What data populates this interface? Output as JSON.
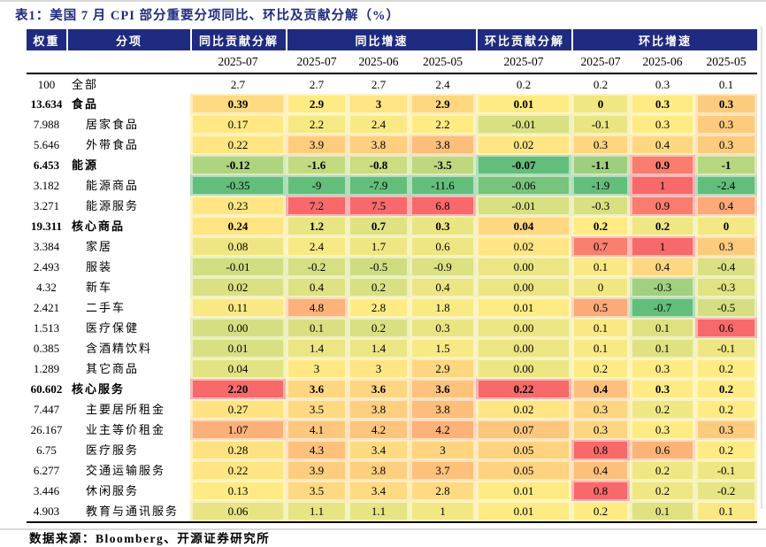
{
  "title": "表1：美国 7 月 CPI 部分重要分项同比、环比及贡献分解（%）",
  "source_note": "数据来源：Bloomberg、开源证券研究所",
  "colors": {
    "header_bg": "#1f2b80",
    "title_text": "#1f2b80",
    "scale_min_green": "#63BE7B",
    "scale_mid_yellow": "#FFEB84",
    "scale_max_red": "#F8696B"
  },
  "chart_data": {
    "type": "table",
    "title": "美国 7 月 CPI 部分重要分项同比、环比及贡献分解（%）",
    "group_headers": [
      "权重",
      "分项",
      "同比贡献分解",
      "同比增速",
      "环比贡献分解",
      "环比增速"
    ],
    "date_headers": [
      "2025-07",
      "2025-07",
      "2025-06",
      "2025-05",
      "2025-07",
      "2025-07",
      "2025-06",
      "2025-05"
    ],
    "color_scale": {
      "min": "#63BE7B",
      "mid": "#FFEB84",
      "max": "#F8696B",
      "rule": "per-column green-yellow-red scale, midpoint = column median, applied to all rows except 全部"
    },
    "rows": [
      {
        "weight": "100",
        "name": "全部",
        "level": 0,
        "bold": false,
        "colored": false,
        "values": [
          "2.7",
          "2.7",
          "2.7",
          "2.4",
          "0.2",
          "0.2",
          "0.3",
          "0.1"
        ]
      },
      {
        "weight": "13.634",
        "name": "食品",
        "level": 0,
        "bold": true,
        "colored": true,
        "values": [
          "0.39",
          "2.9",
          "3",
          "2.9",
          "0.01",
          "0",
          "0.3",
          "0.3"
        ]
      },
      {
        "weight": "7.988",
        "name": "居家食品",
        "level": 1,
        "bold": false,
        "colored": true,
        "values": [
          "0.17",
          "2.2",
          "2.4",
          "2.2",
          "-0.01",
          "-0.1",
          "0.3",
          "0.3"
        ]
      },
      {
        "weight": "5.646",
        "name": "外带食品",
        "level": 1,
        "bold": false,
        "colored": true,
        "values": [
          "0.22",
          "3.9",
          "3.8",
          "3.8",
          "0.02",
          "0.3",
          "0.4",
          "0.3"
        ]
      },
      {
        "weight": "6.453",
        "name": "能源",
        "level": 0,
        "bold": true,
        "colored": true,
        "values": [
          "-0.12",
          "-1.6",
          "-0.8",
          "-3.5",
          "-0.07",
          "-1.1",
          "0.9",
          "-1"
        ]
      },
      {
        "weight": "3.182",
        "name": "能源商品",
        "level": 1,
        "bold": false,
        "colored": true,
        "values": [
          "-0.35",
          "-9",
          "-7.9",
          "-11.6",
          "-0.06",
          "-1.9",
          "1",
          "-2.4"
        ]
      },
      {
        "weight": "3.271",
        "name": "能源服务",
        "level": 1,
        "bold": false,
        "colored": true,
        "values": [
          "0.23",
          "7.2",
          "7.5",
          "6.8",
          "-0.01",
          "-0.3",
          "0.9",
          "0.4"
        ]
      },
      {
        "weight": "19.311",
        "name": "核心商品",
        "level": 0,
        "bold": true,
        "colored": true,
        "values": [
          "0.24",
          "1.2",
          "0.7",
          "0.3",
          "0.04",
          "0.2",
          "0.2",
          "0"
        ]
      },
      {
        "weight": "3.384",
        "name": "家居",
        "level": 1,
        "bold": false,
        "colored": true,
        "values": [
          "0.08",
          "2.4",
          "1.7",
          "0.6",
          "0.02",
          "0.7",
          "1",
          "0.3"
        ]
      },
      {
        "weight": "2.493",
        "name": "服装",
        "level": 1,
        "bold": false,
        "colored": true,
        "values": [
          "-0.01",
          "-0.2",
          "-0.5",
          "-0.9",
          "0.00",
          "0.1",
          "0.4",
          "-0.4"
        ]
      },
      {
        "weight": "4.32",
        "name": "新车",
        "level": 1,
        "bold": false,
        "colored": true,
        "values": [
          "0.02",
          "0.4",
          "0.2",
          "0.4",
          "0.00",
          "0",
          "-0.3",
          "-0.3"
        ]
      },
      {
        "weight": "2.421",
        "name": "二手车",
        "level": 1,
        "bold": false,
        "colored": true,
        "values": [
          "0.11",
          "4.8",
          "2.8",
          "1.8",
          "0.01",
          "0.5",
          "-0.7",
          "-0.5"
        ]
      },
      {
        "weight": "1.513",
        "name": "医疗保健",
        "level": 1,
        "bold": false,
        "colored": true,
        "values": [
          "0.00",
          "0.1",
          "0.2",
          "0.3",
          "0.00",
          "0.1",
          "0.1",
          "0.6"
        ]
      },
      {
        "weight": "0.385",
        "name": "含酒精饮料",
        "level": 1,
        "bold": false,
        "colored": true,
        "values": [
          "0.01",
          "1.4",
          "1.4",
          "1.5",
          "0.00",
          "0.1",
          "0.1",
          "-0.1"
        ]
      },
      {
        "weight": "1.289",
        "name": "其它商品",
        "level": 1,
        "bold": false,
        "colored": true,
        "values": [
          "0.04",
          "3",
          "3",
          "2.9",
          "0.00",
          "0.2",
          "0.3",
          "0.2"
        ]
      },
      {
        "weight": "60.602",
        "name": "核心服务",
        "level": 0,
        "bold": true,
        "colored": true,
        "values": [
          "2.20",
          "3.6",
          "3.6",
          "3.6",
          "0.22",
          "0.4",
          "0.3",
          "0.2"
        ]
      },
      {
        "weight": "7.447",
        "name": "主要居所租金",
        "level": 1,
        "bold": false,
        "colored": true,
        "values": [
          "0.27",
          "3.5",
          "3.8",
          "3.8",
          "0.02",
          "0.3",
          "0.2",
          "0.2"
        ]
      },
      {
        "weight": "26.167",
        "name": "业主等价租金",
        "level": 1,
        "bold": false,
        "colored": true,
        "values": [
          "1.07",
          "4.1",
          "4.2",
          "4.2",
          "0.07",
          "0.3",
          "0.3",
          "0.3"
        ]
      },
      {
        "weight": "6.75",
        "name": "医疗服务",
        "level": 1,
        "bold": false,
        "colored": true,
        "values": [
          "0.28",
          "4.3",
          "3.4",
          "3",
          "0.05",
          "0.8",
          "0.6",
          "0.2"
        ]
      },
      {
        "weight": "6.277",
        "name": "交通运输服务",
        "level": 1,
        "bold": false,
        "colored": true,
        "values": [
          "0.22",
          "3.9",
          "3.8",
          "3.7",
          "0.05",
          "0.4",
          "0.2",
          "-0.1"
        ]
      },
      {
        "weight": "3.446",
        "name": "休闲服务",
        "level": 1,
        "bold": false,
        "colored": true,
        "values": [
          "0.13",
          "3.5",
          "3.4",
          "2.8",
          "0.01",
          "0.8",
          "0.2",
          "-0.2"
        ]
      },
      {
        "weight": "4.903",
        "name": "教育与通讯服务",
        "level": 1,
        "bold": false,
        "colored": true,
        "values": [
          "0.06",
          "1.1",
          "1.1",
          "1",
          "0.01",
          "0.2",
          "0.1",
          "0.1"
        ]
      }
    ]
  }
}
